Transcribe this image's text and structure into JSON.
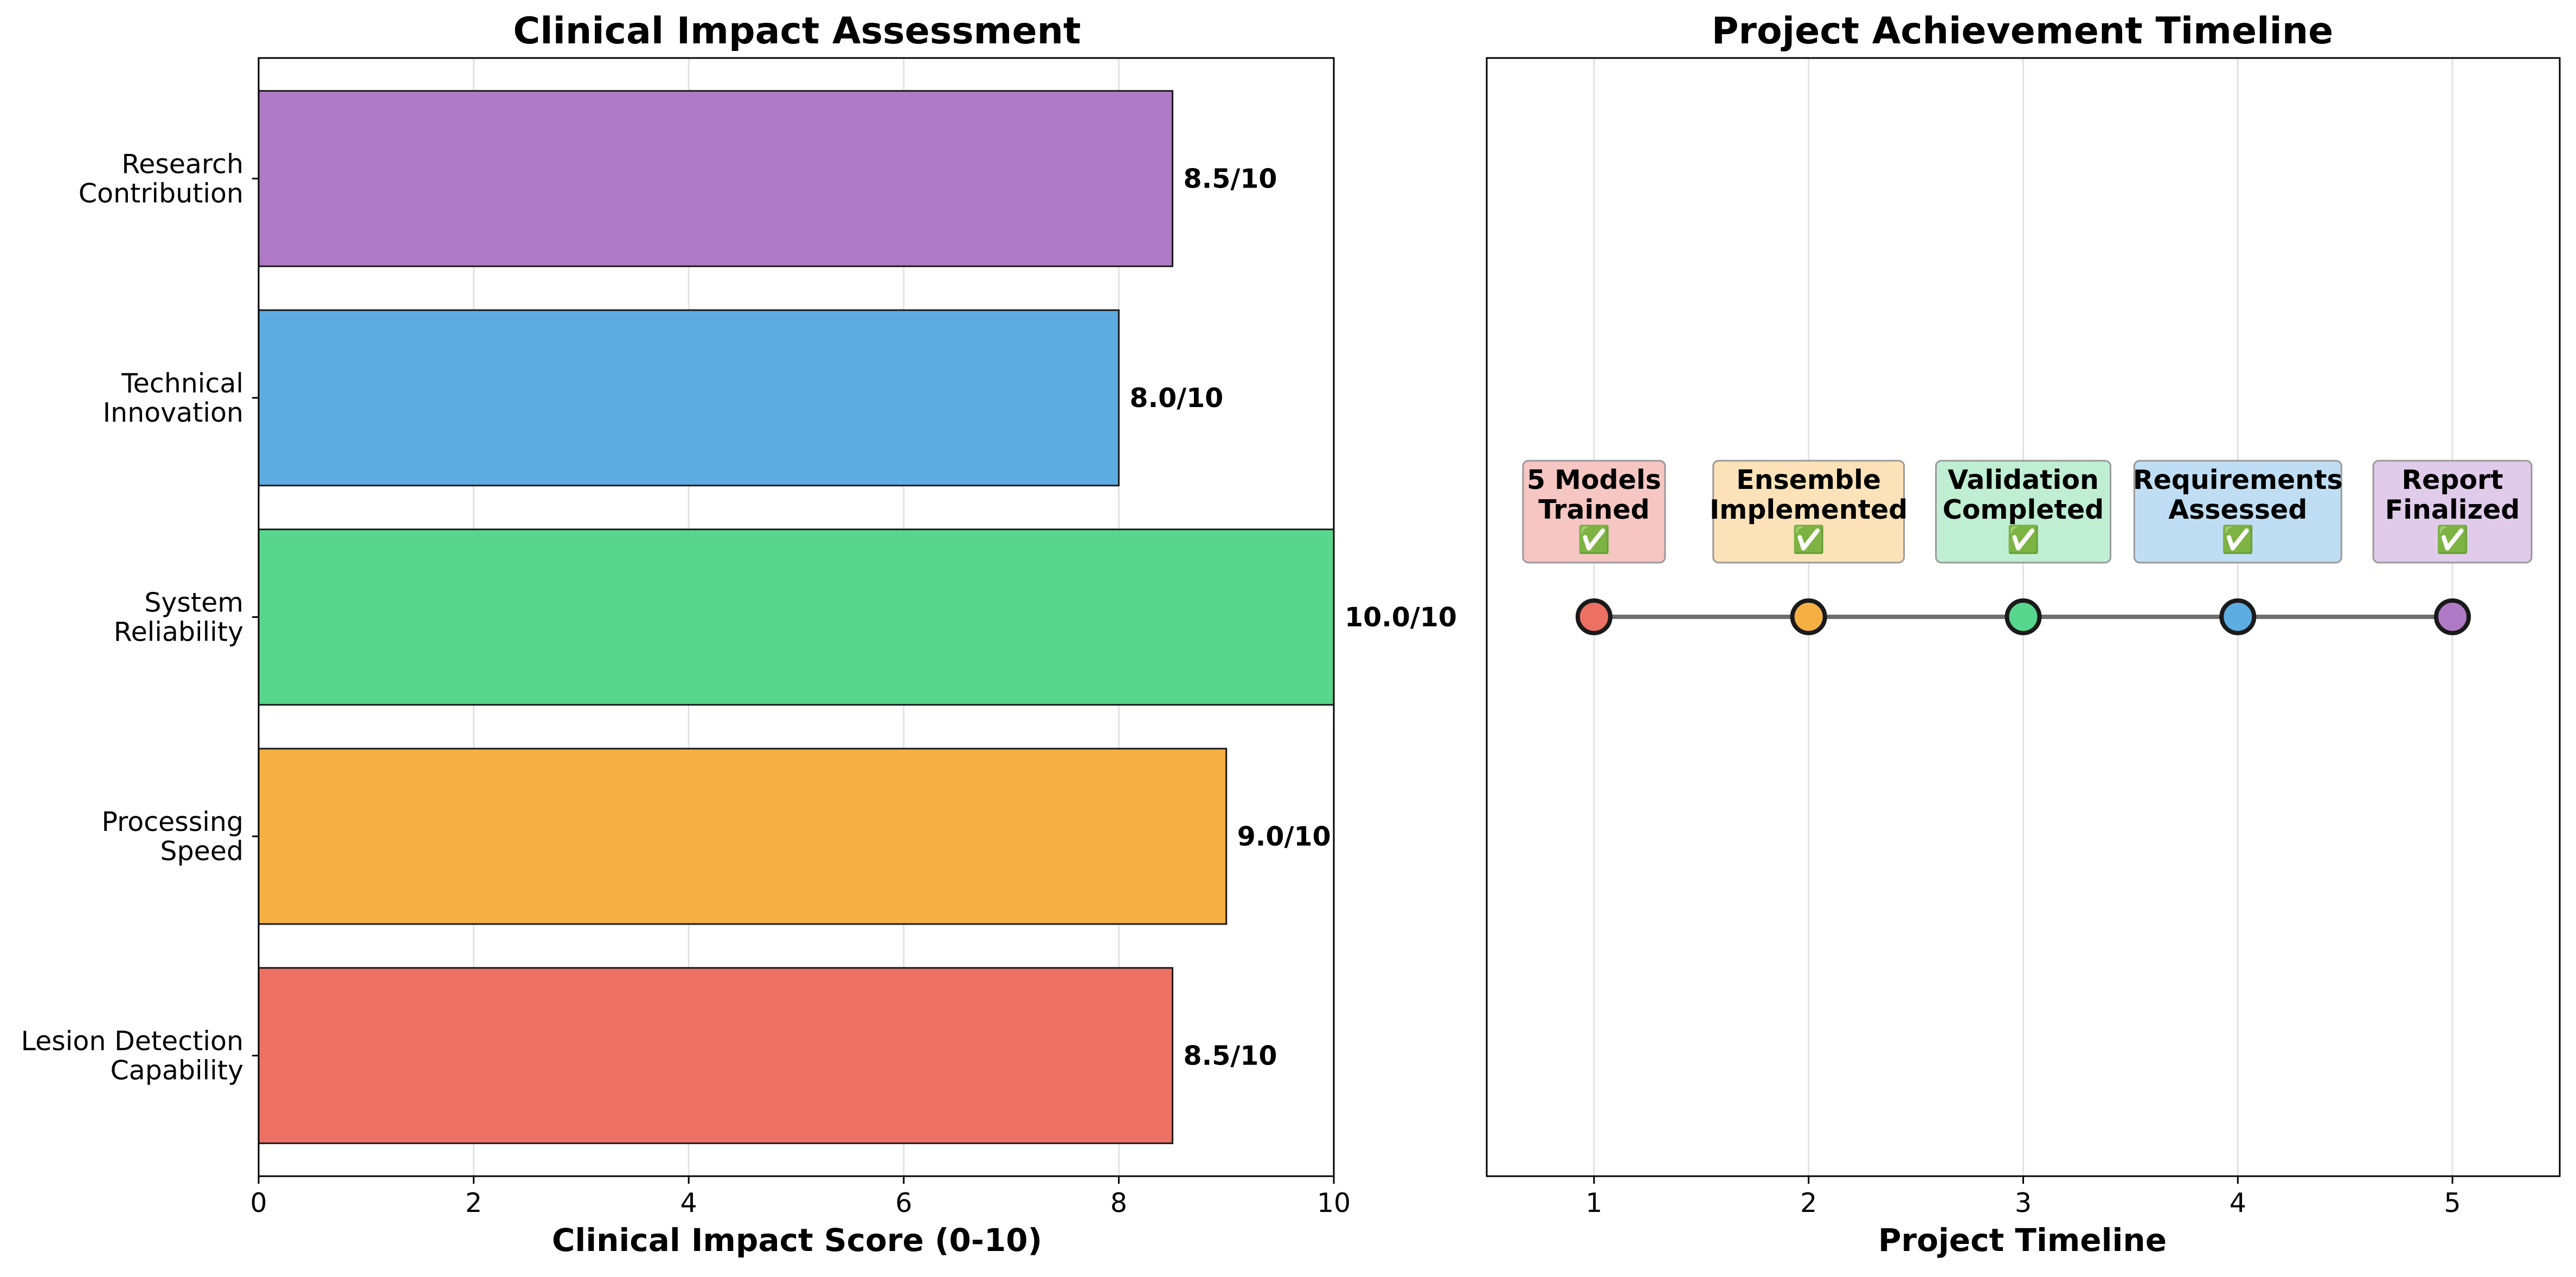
{
  "chart_data": [
    {
      "type": "bar",
      "orientation": "horizontal",
      "title": "Clinical Impact Assessment",
      "xlabel": "Clinical Impact Score (0-10)",
      "ylabel": "",
      "xlim": [
        0,
        10
      ],
      "xticks": [
        0,
        2,
        4,
        6,
        8,
        10
      ],
      "grid": "vertical",
      "categories": [
        [
          "Lesion Detection",
          "Capability"
        ],
        [
          "Processing",
          "Speed"
        ],
        [
          "System",
          "Reliability"
        ],
        [
          "Technical",
          "Innovation"
        ],
        [
          "Research",
          "Contribution"
        ]
      ],
      "values": [
        8.5,
        9.0,
        10.0,
        8.0,
        8.5
      ],
      "value_labels": [
        "8.5/10",
        "9.0/10",
        "10.0/10",
        "8.0/10",
        "8.5/10"
      ],
      "colors": [
        "#ec7063",
        "#f4b042",
        "#58d68d",
        "#5dade2",
        "#af7ac5"
      ]
    },
    {
      "type": "scatter",
      "subtype": "timeline",
      "title": "Project Achievement Timeline",
      "xlabel": "Project Timeline",
      "ylabel": "",
      "xlim": [
        0.5,
        5.5
      ],
      "xticks": [
        1,
        2,
        3,
        4,
        5
      ],
      "grid": "vertical",
      "milestones": [
        {
          "x": 1,
          "label": [
            "5 Models",
            "Trained",
            "✅"
          ],
          "color": "#ec7063",
          "box_color": "#f5c6c2"
        },
        {
          "x": 2,
          "label": [
            "Ensemble",
            "Implemented",
            "✅"
          ],
          "color": "#f4b042",
          "box_color": "#fbe2b8"
        },
        {
          "x": 3,
          "label": [
            "Validation",
            "Completed",
            "✅"
          ],
          "color": "#58d68d",
          "box_color": "#bfeed3"
        },
        {
          "x": 4,
          "label": [
            "Requirements",
            "Assessed",
            "✅"
          ],
          "color": "#5dade2",
          "box_color": "#c0def3"
        },
        {
          "x": 5,
          "label": [
            "Report",
            "Finalized",
            "✅"
          ],
          "color": "#af7ac5",
          "box_color": "#e0cbea"
        }
      ]
    }
  ]
}
